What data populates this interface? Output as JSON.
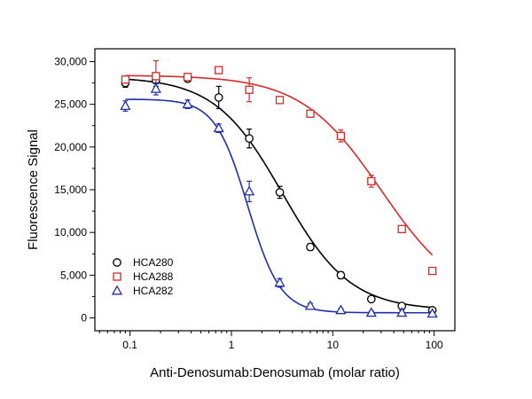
{
  "chart_data": {
    "type": "scatter",
    "title": "",
    "xlabel": "Anti-Denosumab:Denosumab (molar ratio)",
    "ylabel": "Fluorescence Signal",
    "xscale": "log",
    "xlim": [
      0.045,
      160
    ],
    "ylim": [
      -1500,
      31500
    ],
    "xticks": [
      0.1,
      1,
      10,
      100
    ],
    "xtick_labels": [
      "0.1",
      "1",
      "10",
      "100"
    ],
    "yticks": [
      0,
      5000,
      10000,
      15000,
      20000,
      25000,
      30000
    ],
    "ytick_labels": [
      "0",
      "5,000",
      "10,000",
      "15,000",
      "20,000",
      "25,000",
      "30,000"
    ],
    "grid": false,
    "legend_position": "bottom-left",
    "series": [
      {
        "name": "HCA280",
        "color": "#000000",
        "marker": "circle",
        "x": [
          0.09,
          0.18,
          0.37,
          0.75,
          1.5,
          3,
          6,
          12,
          24,
          48,
          96
        ],
        "y": [
          27500,
          27800,
          28000,
          25800,
          21000,
          14700,
          8300,
          5000,
          2200,
          1400,
          900
        ],
        "error": [
          500,
          700,
          400,
          1300,
          1100,
          700,
          400,
          400,
          300,
          200,
          150
        ],
        "fit": {
          "top": 28200,
          "bottom": 900,
          "ec50": 3.2,
          "hill": 1.3
        }
      },
      {
        "name": "HCA288",
        "color": "#d42a2a",
        "marker": "square",
        "x": [
          0.09,
          0.18,
          0.37,
          0.75,
          1.5,
          3,
          6,
          12,
          24,
          48,
          96
        ],
        "y": [
          27900,
          28300,
          28200,
          29000,
          26700,
          25500,
          23900,
          21300,
          16000,
          10400,
          5500
        ],
        "error": [
          400,
          1800,
          400,
          0,
          1400,
          400,
          300,
          700,
          700,
          400,
          300
        ],
        "fit": {
          "top": 28400,
          "bottom": 1500,
          "ec50": 30,
          "hill": 1.1
        }
      },
      {
        "name": "HCA282",
        "color": "#1f2fa8",
        "marker": "triangle",
        "x": [
          0.09,
          0.18,
          0.37,
          0.75,
          1.5,
          3,
          6,
          12,
          24,
          48,
          96
        ],
        "y": [
          24800,
          26800,
          25000,
          22200,
          14800,
          4100,
          1400,
          900,
          600,
          600,
          500
        ],
        "error": [
          600,
          700,
          500,
          500,
          1200,
          500,
          300,
          200,
          200,
          300,
          200
        ],
        "fit": {
          "top": 25600,
          "bottom": 600,
          "ec50": 1.45,
          "hill": 2.7
        }
      }
    ]
  }
}
